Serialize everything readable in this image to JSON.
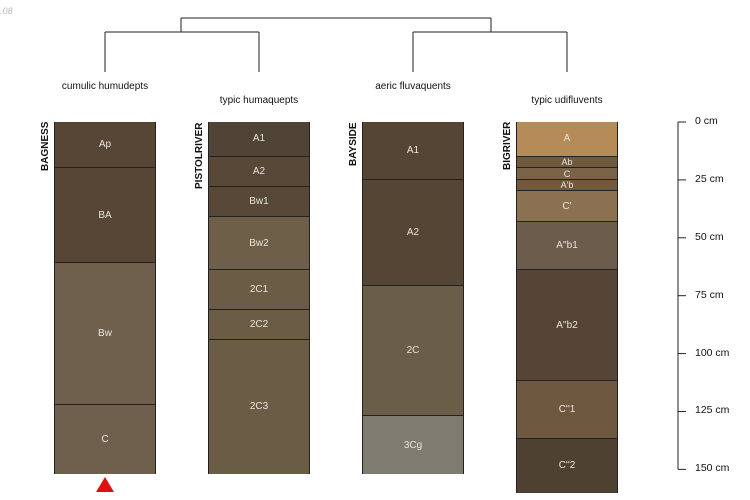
{
  "corner_text": ".08",
  "groups": [
    {
      "label": "cumulic humudepts"
    },
    {
      "label": "typic humaquepts"
    },
    {
      "label": "aeric fluvaquents"
    },
    {
      "label": "typic udifluvents"
    }
  ],
  "depth_axis": {
    "unit": "cm",
    "ticks": [
      {
        "value": 0,
        "label": "0 cm"
      },
      {
        "value": 25,
        "label": "25 cm"
      },
      {
        "value": 50,
        "label": "50 cm"
      },
      {
        "value": 75,
        "label": "75 cm"
      },
      {
        "value": 100,
        "label": "100 cm"
      },
      {
        "value": 125,
        "label": "125 cm"
      },
      {
        "value": 150,
        "label": "150 cm"
      }
    ]
  },
  "profiles": [
    {
      "site": "BAGNESS",
      "marker": true,
      "horizons": [
        {
          "name": "Ap",
          "top": 0,
          "bottom": 20,
          "color": "#574636"
        },
        {
          "name": "BA",
          "top": 20,
          "bottom": 61,
          "color": "#574636"
        },
        {
          "name": "Bw",
          "top": 61,
          "bottom": 122,
          "color": "#6f5f4d"
        },
        {
          "name": "C",
          "top": 122,
          "bottom": 152,
          "color": "#6f5f4d"
        }
      ]
    },
    {
      "site": "PISTOLRIVER",
      "marker": false,
      "horizons": [
        {
          "name": "A1",
          "top": 0,
          "bottom": 15,
          "color": "#4f4435"
        },
        {
          "name": "A2",
          "top": 15,
          "bottom": 28,
          "color": "#574838"
        },
        {
          "name": "Bw1",
          "top": 28,
          "bottom": 41,
          "color": "#574838"
        },
        {
          "name": "Bw2",
          "top": 41,
          "bottom": 64,
          "color": "#6e5f48"
        },
        {
          "name": "2C1",
          "top": 64,
          "bottom": 81,
          "color": "#6a5c45"
        },
        {
          "name": "2C2",
          "top": 81,
          "bottom": 94,
          "color": "#6a5c45"
        },
        {
          "name": "2C3",
          "top": 94,
          "bottom": 152,
          "color": "#6a5c45"
        }
      ]
    },
    {
      "site": "BAYSIDE",
      "marker": false,
      "horizons": [
        {
          "name": "A1",
          "top": 0,
          "bottom": 25,
          "color": "#554535"
        },
        {
          "name": "A2",
          "top": 25,
          "bottom": 71,
          "color": "#554535"
        },
        {
          "name": "2C",
          "top": 71,
          "bottom": 127,
          "color": "#6b5e48"
        },
        {
          "name": "3Cg",
          "top": 127,
          "bottom": 152,
          "color": "#7e7c70"
        }
      ]
    },
    {
      "site": "BIGRIVER",
      "marker": false,
      "horizons": [
        {
          "name": "A",
          "top": 0,
          "bottom": 15,
          "color": "#b58c58"
        },
        {
          "name": "Ab",
          "top": 15,
          "bottom": 20,
          "color": "#6f5a40"
        },
        {
          "name": "C",
          "top": 20,
          "bottom": 25,
          "color": "#7a6347"
        },
        {
          "name": "A'b",
          "top": 25,
          "bottom": 30,
          "color": "#6f5a40"
        },
        {
          "name": "C'",
          "top": 30,
          "bottom": 43,
          "color": "#8c7052"
        },
        {
          "name": "A''b1",
          "top": 43,
          "bottom": 64,
          "color": "#6c5c4b"
        },
        {
          "name": "A''b2",
          "top": 64,
          "bottom": 112,
          "color": "#564536"
        },
        {
          "name": "C''1",
          "top": 112,
          "bottom": 137,
          "color": "#6e5840"
        },
        {
          "name": "C''2",
          "top": 137,
          "bottom": 160,
          "color": "#4f4132"
        }
      ]
    }
  ]
}
